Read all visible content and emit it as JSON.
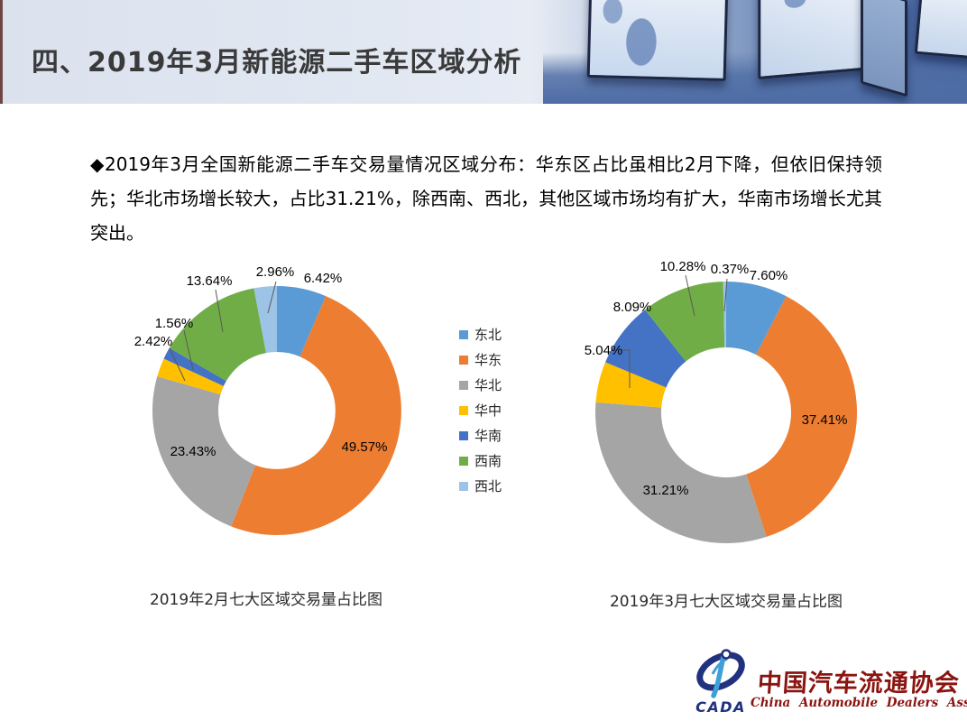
{
  "header": {
    "title": "四、2019年3月新能源二手车区域分析"
  },
  "intro": {
    "text": "◆2019年3月全国新能源二手车交易量情况区域分布：华东区占比虽相比2月下降，但依旧保持领先；华北市场增长较大，占比31.21%，除西南、西北，其他区域市场均有扩大，华南市场增长尤其突出。"
  },
  "legend": {
    "items": [
      {
        "label": "东北",
        "color": "#5B9BD5"
      },
      {
        "label": "华东",
        "color": "#ED7D31"
      },
      {
        "label": "华北",
        "color": "#A5A5A5"
      },
      {
        "label": "华中",
        "color": "#FFC000"
      },
      {
        "label": "华南",
        "color": "#4472C4"
      },
      {
        "label": "西南",
        "color": "#70AD47"
      },
      {
        "label": "西北",
        "color": "#9DC3E6"
      }
    ]
  },
  "chart_data": [
    {
      "type": "pie",
      "subtype": "donut",
      "title": "2019年2月七大区域交易量占比图",
      "categories": [
        "东北",
        "华东",
        "华北",
        "华中",
        "华南",
        "西南",
        "西北"
      ],
      "values": [
        6.42,
        49.57,
        23.43,
        2.42,
        1.56,
        13.64,
        2.96
      ],
      "colors": [
        "#5B9BD5",
        "#ED7D31",
        "#A5A5A5",
        "#FFC000",
        "#4472C4",
        "#70AD47",
        "#9DC3E6"
      ],
      "unit": "%",
      "label_format": "percent-2dp",
      "legend_position": "right-shared",
      "start_angle": "top-clockwise"
    },
    {
      "type": "pie",
      "subtype": "donut",
      "title": "2019年3月七大区域交易量占比图",
      "categories": [
        "东北",
        "华东",
        "华北",
        "华中",
        "华南",
        "西南",
        "西北"
      ],
      "values": [
        7.6,
        37.41,
        31.21,
        5.04,
        8.09,
        10.28,
        0.37
      ],
      "colors": [
        "#5B9BD5",
        "#ED7D31",
        "#A5A5A5",
        "#FFC000",
        "#4472C4",
        "#70AD47",
        "#9DC3E6"
      ],
      "unit": "%",
      "label_format": "percent-2dp",
      "legend_position": "left-shared",
      "start_angle": "top-clockwise"
    }
  ],
  "footer": {
    "logo_acronym": "CADA",
    "org_cn": "中国汽车流通协会",
    "org_en": "China Automobile Dealers Association",
    "brand_navy": "#20317f",
    "brand_red": "#8a1410",
    "brand_lightblue": "#3f9fd8"
  }
}
